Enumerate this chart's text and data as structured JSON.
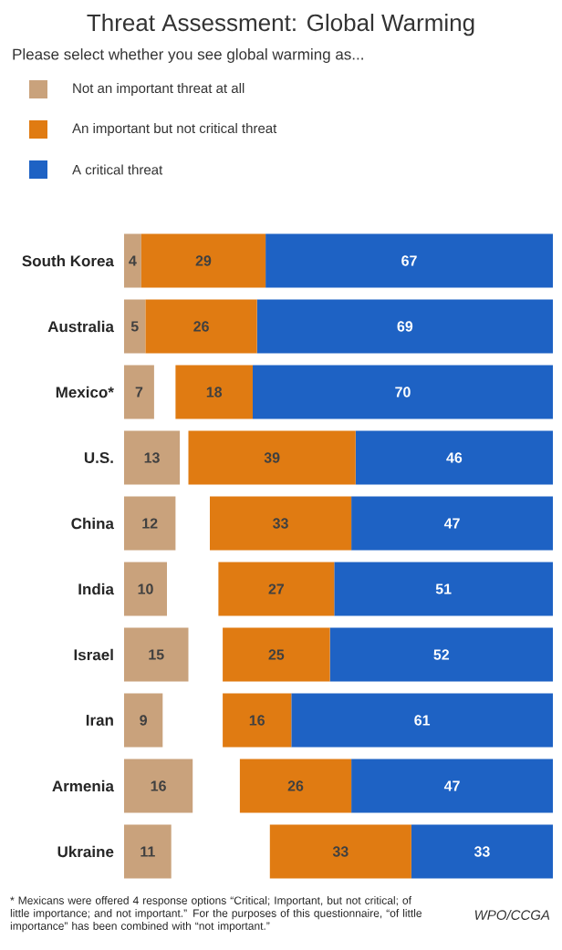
{
  "chart_data": [
    {
      "type": "bar",
      "orientation": "horizontal",
      "data_labels": true,
      "legend": "top left",
      "title": "Threat Assessment: Global Warming",
      "subtitle": "Please select whether you see global warming as...",
      "categories": [
        "South Korea",
        "Australia",
        "Mexico*",
        "U.S.",
        "China",
        "India",
        "Israel",
        "Iran",
        "Armenia",
        "Ukraine"
      ],
      "series": [
        {
          "name": "Not an important threat at all",
          "color": "#c9a27c",
          "values": [
            4,
            5,
            7,
            13,
            12,
            10,
            15,
            9,
            16,
            11
          ]
        }
      ],
      "annotations": [
        "* Mexicans were offered 4 response options “Critical; Important, but not critical; of little importance; and not important.” For the purposes of this questionnaire, “of little importance” has been combined with “not important.”",
        "WPO/CCGA"
      ]
    },
    {
      "type": "bar",
      "orientation": "horizontal",
      "stacked": true,
      "data_labels": true,
      "legend": "top left",
      "tick_labels": false,
      "categories": [
        null,
        null,
        null,
        null,
        null,
        null,
        null,
        null,
        null,
        null
      ],
      "series": [
        {
          "name": "A critical threat",
          "color": "#1e62c4",
          "values": [
            67,
            69,
            70,
            46,
            47,
            51,
            52,
            61,
            47,
            33
          ]
        },
        {
          "name": "An important but not critical threat",
          "color": "#e07b12",
          "values": [
            29,
            26,
            18,
            39,
            33,
            27,
            25,
            16,
            26,
            33
          ]
        }
      ]
    }
  ]
}
